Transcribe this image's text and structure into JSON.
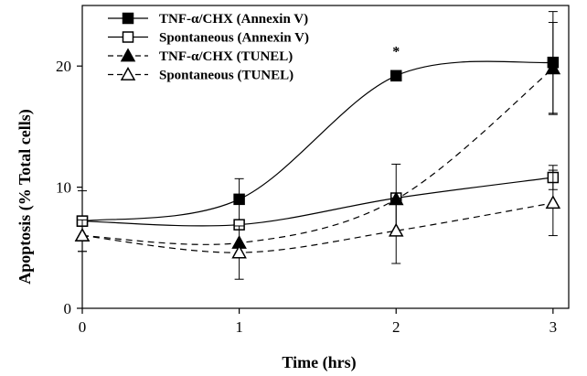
{
  "chart_data": {
    "type": "line",
    "xlabel": "Time (hrs)",
    "ylabel": "Apoptosis (% Total cells)",
    "x": [
      0,
      1,
      2,
      3
    ],
    "xlim": [
      0,
      3.1
    ],
    "ylim": [
      0,
      25
    ],
    "xticks": [
      "0",
      "1",
      "2",
      "3"
    ],
    "yticks": [
      "0",
      "10",
      "20"
    ],
    "grid": false,
    "legend_position": "top-left",
    "series": [
      {
        "name": "TNF-α/CHX (Annexin V)",
        "values": [
          7.2,
          9.0,
          19.2,
          20.3
        ],
        "errors": [
          2.5,
          1.7,
          0,
          4.2
        ],
        "marker": "square-filled",
        "line": "solid"
      },
      {
        "name": "Spontaneous (Annexin V)",
        "values": [
          7.2,
          6.9,
          9.1,
          10.8
        ],
        "errors": [
          0,
          0,
          2.8,
          1.0
        ],
        "marker": "square-open",
        "line": "solid"
      },
      {
        "name": "TNF-α/CHX (TUNEL)",
        "values": [
          6.0,
          5.4,
          9.0,
          19.8
        ],
        "errors": [
          1.3,
          0,
          0,
          3.8
        ],
        "marker": "triangle-filled",
        "line": "dashed"
      },
      {
        "name": "Spontaneous (TUNEL)",
        "values": [
          6.0,
          4.6,
          6.4,
          8.7
        ],
        "errors": [
          0,
          2.2,
          2.7,
          2.7
        ],
        "marker": "triangle-open",
        "line": "dashed"
      }
    ],
    "annotations": [
      {
        "text": "*",
        "x": 2,
        "y": 20.8
      }
    ]
  }
}
